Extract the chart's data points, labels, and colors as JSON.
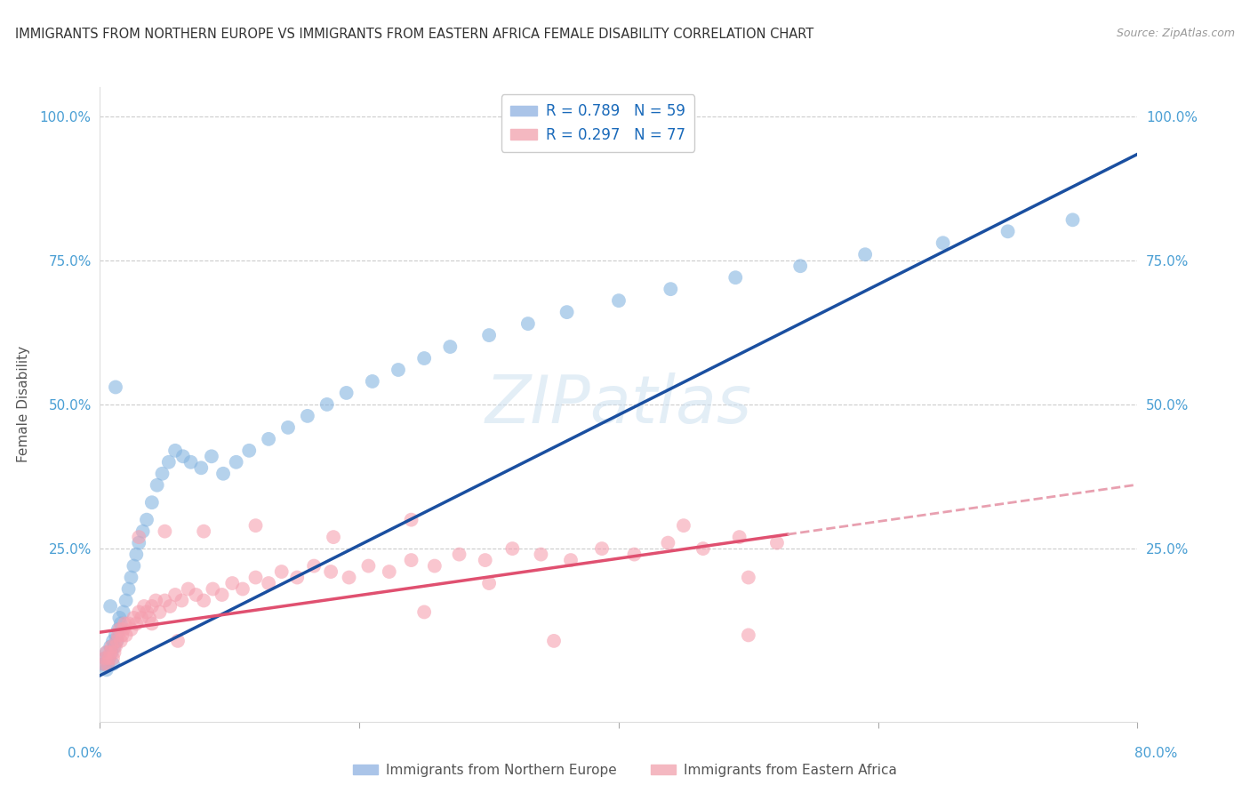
{
  "title": "IMMIGRANTS FROM NORTHERN EUROPE VS IMMIGRANTS FROM EASTERN AFRICA FEMALE DISABILITY CORRELATION CHART",
  "source": "Source: ZipAtlas.com",
  "ylabel": "Female Disability",
  "legend_label1": "Immigrants from Northern Europe",
  "legend_label2": "Immigrants from Eastern Africa",
  "blue_scatter_color": "#85b4e0",
  "pink_scatter_color": "#f5a0b0",
  "blue_line_color": "#1a4fa0",
  "pink_line_color": "#e05070",
  "pink_line_dashed_color": "#e8a0b0",
  "watermark": "ZIPatlas",
  "xlim": [
    0.0,
    0.8
  ],
  "ylim": [
    -0.05,
    1.05
  ],
  "blue_scatter_x": [
    0.003,
    0.004,
    0.005,
    0.005,
    0.006,
    0.007,
    0.008,
    0.009,
    0.01,
    0.01,
    0.011,
    0.012,
    0.013,
    0.014,
    0.015,
    0.016,
    0.018,
    0.02,
    0.022,
    0.024,
    0.026,
    0.028,
    0.03,
    0.033,
    0.036,
    0.04,
    0.044,
    0.048,
    0.053,
    0.058,
    0.064,
    0.07,
    0.078,
    0.086,
    0.095,
    0.105,
    0.115,
    0.13,
    0.145,
    0.16,
    0.175,
    0.19,
    0.21,
    0.23,
    0.25,
    0.27,
    0.3,
    0.33,
    0.36,
    0.4,
    0.44,
    0.49,
    0.54,
    0.59,
    0.65,
    0.7,
    0.75,
    0.008,
    0.012
  ],
  "blue_scatter_y": [
    0.05,
    0.06,
    0.04,
    0.07,
    0.05,
    0.06,
    0.08,
    0.07,
    0.05,
    0.09,
    0.08,
    0.1,
    0.09,
    0.11,
    0.13,
    0.12,
    0.14,
    0.16,
    0.18,
    0.2,
    0.22,
    0.24,
    0.26,
    0.28,
    0.3,
    0.33,
    0.36,
    0.38,
    0.4,
    0.42,
    0.41,
    0.4,
    0.39,
    0.41,
    0.38,
    0.4,
    0.42,
    0.44,
    0.46,
    0.48,
    0.5,
    0.52,
    0.54,
    0.56,
    0.58,
    0.6,
    0.62,
    0.64,
    0.66,
    0.68,
    0.7,
    0.72,
    0.74,
    0.76,
    0.78,
    0.8,
    0.82,
    0.15,
    0.53
  ],
  "pink_scatter_x": [
    0.003,
    0.004,
    0.005,
    0.006,
    0.007,
    0.008,
    0.009,
    0.01,
    0.011,
    0.012,
    0.013,
    0.014,
    0.015,
    0.016,
    0.017,
    0.018,
    0.019,
    0.02,
    0.022,
    0.024,
    0.026,
    0.028,
    0.03,
    0.032,
    0.034,
    0.036,
    0.038,
    0.04,
    0.043,
    0.046,
    0.05,
    0.054,
    0.058,
    0.063,
    0.068,
    0.074,
    0.08,
    0.087,
    0.094,
    0.102,
    0.11,
    0.12,
    0.13,
    0.14,
    0.152,
    0.165,
    0.178,
    0.192,
    0.207,
    0.223,
    0.24,
    0.258,
    0.277,
    0.297,
    0.318,
    0.34,
    0.363,
    0.387,
    0.412,
    0.438,
    0.465,
    0.493,
    0.522,
    0.03,
    0.05,
    0.08,
    0.12,
    0.18,
    0.25,
    0.35,
    0.45,
    0.5,
    0.5,
    0.24,
    0.3,
    0.04,
    0.06
  ],
  "pink_scatter_y": [
    0.05,
    0.06,
    0.07,
    0.05,
    0.06,
    0.07,
    0.08,
    0.06,
    0.07,
    0.08,
    0.09,
    0.1,
    0.11,
    0.09,
    0.1,
    0.11,
    0.12,
    0.1,
    0.12,
    0.11,
    0.13,
    0.12,
    0.14,
    0.13,
    0.15,
    0.14,
    0.13,
    0.15,
    0.16,
    0.14,
    0.16,
    0.15,
    0.17,
    0.16,
    0.18,
    0.17,
    0.16,
    0.18,
    0.17,
    0.19,
    0.18,
    0.2,
    0.19,
    0.21,
    0.2,
    0.22,
    0.21,
    0.2,
    0.22,
    0.21,
    0.23,
    0.22,
    0.24,
    0.23,
    0.25,
    0.24,
    0.23,
    0.25,
    0.24,
    0.26,
    0.25,
    0.27,
    0.26,
    0.27,
    0.28,
    0.28,
    0.29,
    0.27,
    0.14,
    0.09,
    0.29,
    0.2,
    0.1,
    0.3,
    0.19,
    0.12,
    0.09
  ]
}
